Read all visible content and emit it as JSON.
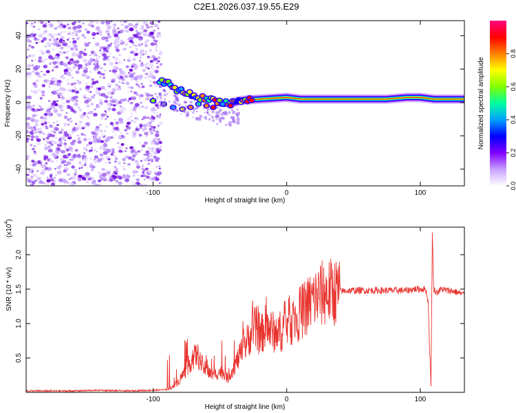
{
  "title": "C2E1.2026.037.19.55.E29",
  "chart_data": [
    {
      "type": "heatmap",
      "xlabel": "Height of straight line (km)",
      "ylabel": "Frequency (Hz)",
      "xlim": [
        -195,
        133
      ],
      "ylim": [
        -50,
        49
      ],
      "xticks": [
        -100,
        0,
        100
      ],
      "xtick_labels": [
        "-100",
        "0",
        "100"
      ],
      "yticks": [
        -40,
        -20,
        0,
        20,
        40
      ],
      "ytick_labels": [
        "-40",
        "-20",
        "0",
        "20",
        "40"
      ],
      "colorbar": {
        "label": "Normalized spectral amplitude",
        "range": [
          0,
          1
        ],
        "ticks": [
          0,
          0.2,
          0.4,
          0.6,
          0.8
        ],
        "tick_labels": [
          "0.0",
          "0.2",
          "0.4",
          "0.6",
          "0.8"
        ],
        "colors": [
          "#ffffff",
          "#c8a0ff",
          "#8000ff",
          "#0000ff",
          "#00a0ff",
          "#00ffa0",
          "#80ff00",
          "#ffff00",
          "#ff8000",
          "#ff0000",
          "#ff0080"
        ]
      },
      "noise_region_x": [
        -195,
        -94
      ],
      "ridge": [
        {
          "x": -95,
          "f": 12
        },
        {
          "x": -90,
          "f": 12
        },
        {
          "x": -85,
          "f": 9
        },
        {
          "x": -80,
          "f": 7
        },
        {
          "x": -75,
          "f": 6
        },
        {
          "x": -70,
          "f": 4
        },
        {
          "x": -65,
          "f": 3
        },
        {
          "x": -60,
          "f": 2
        },
        {
          "x": -55,
          "f": 1.5
        },
        {
          "x": -50,
          "f": 0.5
        },
        {
          "x": -45,
          "f": 0
        },
        {
          "x": -40,
          "f": 0
        },
        {
          "x": -35,
          "f": 1
        },
        {
          "x": -30,
          "f": 1.5
        },
        {
          "x": -20,
          "f": 2
        },
        {
          "x": -10,
          "f": 2.5
        },
        {
          "x": 0,
          "f": 3
        },
        {
          "x": 10,
          "f": 2
        },
        {
          "x": 40,
          "f": 2
        },
        {
          "x": 75,
          "f": 2
        },
        {
          "x": 90,
          "f": 3
        },
        {
          "x": 100,
          "f": 3
        },
        {
          "x": 110,
          "f": 2
        },
        {
          "x": 133,
          "f": 2
        }
      ],
      "lower_branch": [
        {
          "x": -100,
          "f": 1
        },
        {
          "x": -92,
          "f": -1
        },
        {
          "x": -85,
          "f": -3
        },
        {
          "x": -78,
          "f": -4
        },
        {
          "x": -72,
          "f": -3
        },
        {
          "x": -66,
          "f": -1
        },
        {
          "x": -60,
          "f": -2
        },
        {
          "x": -55,
          "f": -3
        },
        {
          "x": -48,
          "f": -1
        },
        {
          "x": -42,
          "f": -2
        }
      ]
    },
    {
      "type": "line",
      "xlabel": "Height of straight line (km)",
      "ylabel": "SNR (10 * v/v)",
      "y_multiplier_label": "(x10",
      "y_multiplier_exp": "4",
      "y_multiplier_close": ")",
      "xlim": [
        -195,
        133
      ],
      "ylim": [
        0,
        2.4
      ],
      "xticks": [
        -100,
        0,
        100
      ],
      "xtick_labels": [
        "-100",
        "0",
        "100"
      ],
      "yticks": [
        0.5,
        1.0,
        1.5,
        2.0
      ],
      "ytick_labels": [
        "0.5",
        "1.0",
        "1.5",
        "2.0"
      ],
      "color": "#e8322d",
      "series": [
        {
          "name": "SNR",
          "x": [
            -195,
            -180,
            -160,
            -140,
            -120,
            -100,
            -90,
            -85,
            -80,
            -75,
            -70,
            -67,
            -64,
            -60,
            -55,
            -50,
            -47,
            -44,
            -40,
            -36,
            -32,
            -28,
            -24,
            -20,
            -16,
            -12,
            -8,
            -4,
            0,
            5,
            10,
            15,
            20,
            25,
            30,
            40,
            50,
            60,
            70,
            80,
            90,
            95,
            100,
            104,
            106,
            107,
            108,
            109,
            110,
            112,
            116,
            120,
            125,
            133
          ],
          "y": [
            0.02,
            0.02,
            0.02,
            0.03,
            0.02,
            0.03,
            0.04,
            0.08,
            0.18,
            0.35,
            0.5,
            0.55,
            0.42,
            0.3,
            0.25,
            0.3,
            0.28,
            0.2,
            0.35,
            0.5,
            0.65,
            0.8,
            0.95,
            0.8,
            0.95,
            0.9,
            0.85,
            0.9,
            1.0,
            1.05,
            1.15,
            1.25,
            1.35,
            1.42,
            1.45,
            1.47,
            1.48,
            1.48,
            1.48,
            1.48,
            1.48,
            1.5,
            1.5,
            1.5,
            1.3,
            0.6,
            0.1,
            2.3,
            1.5,
            1.45,
            1.5,
            1.48,
            1.47,
            1.42
          ]
        }
      ]
    }
  ]
}
